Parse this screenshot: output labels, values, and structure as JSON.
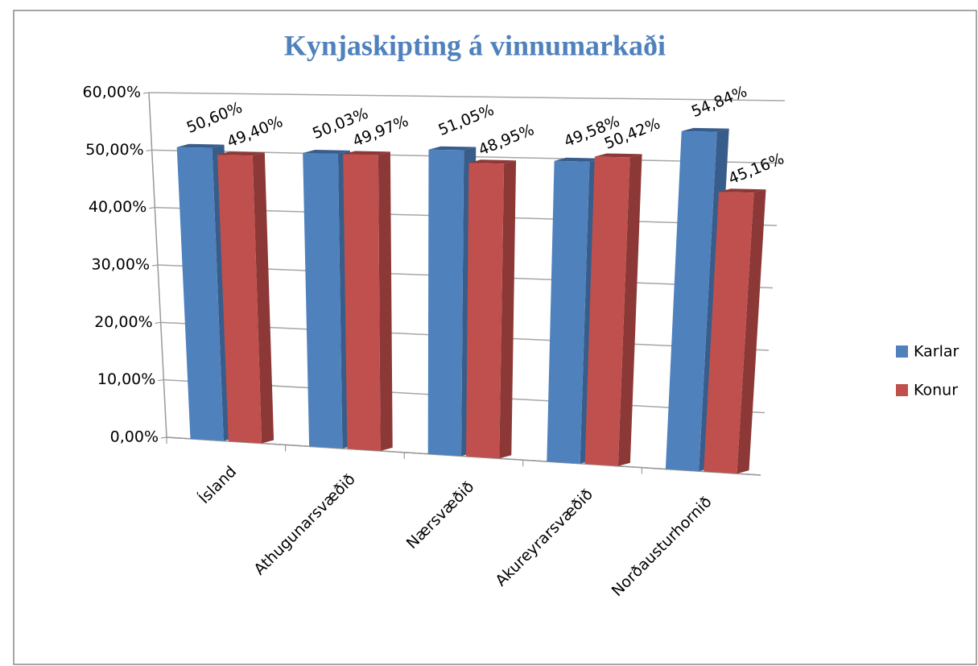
{
  "chart_data": {
    "type": "bar3d",
    "title": "Kynjaskipting á vinnumarkaði",
    "categories": [
      "Ísland",
      "Athugunarsvæðið",
      "Nærsvæðið",
      "Akureyrarsvæðið",
      "Norðausturhornið"
    ],
    "series": [
      {
        "name": "Karlar",
        "color": "#4f81bd",
        "values": [
          50.6,
          50.03,
          51.05,
          49.58,
          54.84
        ],
        "value_labels": [
          "50,60%",
          "50,03%",
          "51,05%",
          "49,58%",
          "54,84%"
        ]
      },
      {
        "name": "Konur",
        "color": "#c0504d",
        "values": [
          49.4,
          49.97,
          48.95,
          50.42,
          45.16
        ],
        "value_labels": [
          "49,40%",
          "49,97%",
          "48,95%",
          "50,42%",
          "45,16%"
        ]
      }
    ],
    "ylim": [
      0,
      60
    ],
    "yticks": [
      {
        "value": 0,
        "label": "0,00%"
      },
      {
        "value": 10,
        "label": "10,00%"
      },
      {
        "value": 20,
        "label": "20,00%"
      },
      {
        "value": 30,
        "label": "30,00%"
      },
      {
        "value": 40,
        "label": "40,00%"
      },
      {
        "value": 50,
        "label": "50,00%"
      },
      {
        "value": 60,
        "label": "60,00%"
      }
    ],
    "grid": true,
    "legend": "right"
  }
}
